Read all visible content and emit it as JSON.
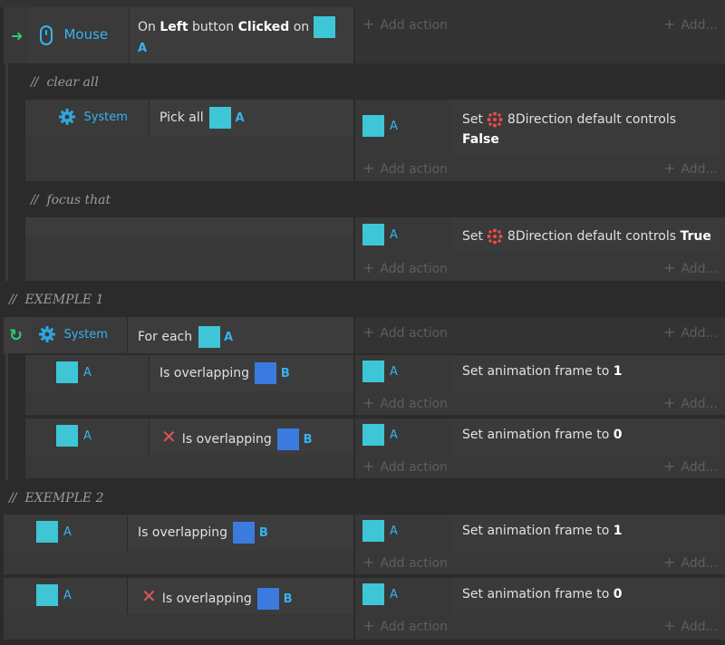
{
  "colors": {
    "background": "#2b2b2b",
    "object_a": "#3ec6d6",
    "object_b": "#3b7be0",
    "accent_blue": "#36b3f0",
    "invert_red": "#e25555",
    "green": "#2ecc71"
  },
  "add_action": "Add action",
  "add_more": "Add...",
  "events": {
    "mouse": {
      "category": "Mouse",
      "cond_pre": "On ",
      "cond_b1": "Left",
      "cond_mid": " button ",
      "cond_b2": "Clicked",
      "cond_post": " on ",
      "object": "A"
    },
    "comment1": "clear all",
    "sub1": {
      "category": "System",
      "cond_text": "Pick all",
      "object": "A",
      "act_object": "A",
      "act_text": "Set",
      "act_behavior": "8Direction default controls",
      "act_value": "False"
    },
    "comment2": "focus that",
    "sub2": {
      "act_object": "A",
      "act_text": "Set",
      "act_behavior": "8Direction default controls",
      "act_value": "True"
    },
    "comment3": "EXEMPLE 1",
    "foreach": {
      "category": "System",
      "cond_text": "For each",
      "object": "A"
    },
    "ex1_row1": {
      "obj": "A",
      "cond_text": "Is overlapping",
      "target": "B",
      "act_obj": "A",
      "act_text": "Set animation frame to",
      "act_value": "1"
    },
    "ex1_row2": {
      "obj": "A",
      "cond_text": "Is overlapping",
      "target": "B",
      "act_obj": "A",
      "act_text": "Set animation frame to",
      "act_value": "0"
    },
    "comment4": "EXEMPLE 2",
    "ex2_row1": {
      "obj": "A",
      "cond_text": "Is overlapping",
      "target": "B",
      "act_obj": "A",
      "act_text": "Set animation frame to",
      "act_value": "1"
    },
    "ex2_row2": {
      "obj": "A",
      "cond_text": "Is overlapping",
      "target": "B",
      "act_obj": "A",
      "act_text": "Set animation frame to",
      "act_value": "0"
    }
  }
}
